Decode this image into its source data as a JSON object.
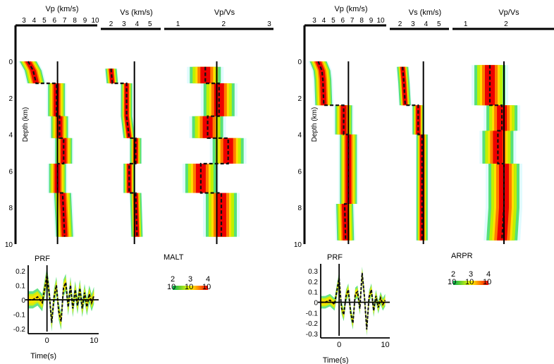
{
  "chart_data": [
    {
      "type": "area",
      "station": "MALT",
      "panels": {
        "vp": {
          "title": "Vp (km/s)",
          "ticks": [
            "3",
            "4",
            "5",
            "6",
            "7",
            "8",
            "9",
            "10"
          ],
          "xlim": [
            3,
            10
          ]
        },
        "vs": {
          "title": "Vs (km/s)",
          "ticks": [
            "2",
            "3",
            "4",
            "5"
          ],
          "xlim": [
            1.7,
            5.5
          ]
        },
        "vpvs": {
          "title": "Vp/Vs",
          "ticks": [
            "1",
            "2",
            "3"
          ],
          "xlim": [
            0.9,
            3
          ]
        }
      },
      "depth_axis": {
        "label": "Depth (km)",
        "ticks": [
          "0",
          "2",
          "4",
          "6",
          "8",
          "10"
        ],
        "ylim": [
          0,
          10
        ]
      },
      "best_fit": {
        "vp": [
          [
            0,
            3.4
          ],
          [
            0.5,
            3.9
          ],
          [
            1.2,
            4.2
          ],
          [
            1.2,
            6.2
          ],
          [
            3.0,
            6.2
          ],
          [
            3.0,
            6.5
          ],
          [
            4.2,
            6.5
          ],
          [
            4.2,
            6.9
          ],
          [
            5.6,
            6.9
          ],
          [
            5.6,
            6.3
          ],
          [
            7.2,
            6.3
          ],
          [
            7.2,
            6.8
          ],
          [
            9.6,
            7.0
          ]
        ],
        "vs": [
          [
            0.4,
            2.0
          ],
          [
            1.2,
            2.1
          ],
          [
            1.2,
            3.2
          ],
          [
            3.0,
            3.2
          ],
          [
            4.2,
            3.4
          ],
          [
            4.2,
            3.9
          ],
          [
            5.6,
            3.9
          ],
          [
            5.6,
            3.4
          ],
          [
            7.2,
            3.4
          ],
          [
            7.2,
            3.9
          ],
          [
            9.6,
            4.0
          ]
        ],
        "vpvs": [
          [
            0.3,
            1.6
          ],
          [
            1.2,
            1.6
          ],
          [
            1.2,
            1.9
          ],
          [
            3.0,
            1.9
          ],
          [
            3.0,
            1.65
          ],
          [
            4.2,
            1.65
          ],
          [
            4.2,
            2.1
          ],
          [
            5.6,
            2.1
          ],
          [
            5.6,
            1.5
          ],
          [
            7.2,
            1.5
          ],
          [
            7.2,
            1.95
          ],
          [
            9.6,
            1.95
          ]
        ]
      },
      "reference": {
        "vp": 6.3,
        "vs": 3.8,
        "vpvs": 1.85
      },
      "prf": {
        "title": "PRF",
        "xlabel": "Time(s)",
        "xticks": [
          "0",
          "10"
        ],
        "yticks": [
          "0.2",
          "0.1",
          "0",
          "-0.1",
          "-0.2"
        ],
        "xlim": [
          -4,
          11
        ],
        "ylim": [
          -0.22,
          0.22
        ],
        "x": [
          -4,
          -3,
          -2,
          -1,
          0,
          0.5,
          1,
          1.5,
          2,
          2.5,
          3,
          3.5,
          4,
          4.5,
          5,
          5.5,
          6,
          6.5,
          7,
          7.5,
          8,
          8.5,
          9,
          9.5,
          10
        ],
        "y": [
          0.0,
          0.0,
          0.02,
          -0.02,
          0.17,
          0.04,
          -0.16,
          0.02,
          0.1,
          -0.08,
          -0.15,
          0.08,
          0.12,
          -0.05,
          0.1,
          -0.06,
          0.07,
          -0.04,
          0.08,
          -0.06,
          0.05,
          -0.05,
          0.04,
          -0.02,
          0.03
        ]
      },
      "colorbar": {
        "labels": [
          "2",
          "3",
          "4"
        ],
        "base": [
          "10",
          "10",
          "10"
        ],
        "colors": [
          "#00b050",
          "#ffff00",
          "#ff0000"
        ]
      }
    },
    {
      "type": "area",
      "station": "ARPR",
      "panels": {
        "vp": {
          "title": "Vp (km/s)",
          "ticks": [
            "3",
            "4",
            "5",
            "6",
            "7",
            "8",
            "9",
            "10"
          ],
          "xlim": [
            3,
            10
          ]
        },
        "vs": {
          "title": "Vs (km/s)",
          "ticks": [
            "2",
            "3",
            "4",
            "5"
          ],
          "xlim": [
            1.7,
            5.5
          ]
        },
        "vpvs": {
          "title": "Vp/Vs",
          "ticks": [
            "1",
            "2"
          ],
          "xlim": [
            0.9,
            3
          ]
        }
      },
      "depth_axis": {
        "label": "Depth (km)",
        "ticks": [
          "0",
          "2",
          "4",
          "6",
          "8",
          "10"
        ],
        "ylim": [
          0,
          10
        ]
      },
      "best_fit": {
        "vp": [
          [
            0,
            3.4
          ],
          [
            0.5,
            3.8
          ],
          [
            1.0,
            3.9
          ],
          [
            2.4,
            4.0
          ],
          [
            2.4,
            6.1
          ],
          [
            4.0,
            6.1
          ],
          [
            4.0,
            6.6
          ],
          [
            7.8,
            6.6
          ],
          [
            7.8,
            6.2
          ],
          [
            9.8,
            6.3
          ]
        ],
        "vs": [
          [
            0.3,
            2.2
          ],
          [
            1.2,
            2.3
          ],
          [
            2.4,
            2.4
          ],
          [
            2.4,
            3.4
          ],
          [
            4.0,
            3.4
          ],
          [
            4.0,
            3.7
          ],
          [
            9.8,
            3.7
          ]
        ],
        "vpvs": [
          [
            0.2,
            1.6
          ],
          [
            2.4,
            1.6
          ],
          [
            2.4,
            1.9
          ],
          [
            3.8,
            1.9
          ],
          [
            3.8,
            1.8
          ],
          [
            5.6,
            1.8
          ],
          [
            5.6,
            1.95
          ],
          [
            8.0,
            1.95
          ],
          [
            9.8,
            1.9
          ]
        ]
      },
      "reference": {
        "vp": 6.6,
        "vs": 3.8,
        "vpvs": 1.95
      },
      "prf": {
        "title": "PRF",
        "xlabel": "Time(s)",
        "xticks": [
          "0",
          "10"
        ],
        "yticks": [
          "0.3",
          "0.2",
          "0.1",
          "0",
          "-0.1",
          "-0.2",
          "-0.3"
        ],
        "xlim": [
          -4,
          11
        ],
        "ylim": [
          -0.32,
          0.34
        ],
        "x": [
          -4,
          -3,
          -2,
          -1,
          0,
          0.5,
          1,
          1.5,
          2,
          2.5,
          3,
          3.5,
          4,
          4.5,
          5,
          5.5,
          6,
          6.5,
          7,
          7.5,
          8,
          8.5,
          9,
          9.5,
          10
        ],
        "y": [
          0.0,
          0.0,
          0.02,
          -0.02,
          0.23,
          -0.05,
          -0.12,
          0.06,
          0.12,
          -0.1,
          -0.2,
          0.08,
          0.1,
          -0.06,
          0.28,
          0.05,
          -0.26,
          0.05,
          0.12,
          -0.08,
          0.06,
          -0.05,
          0.04,
          -0.02,
          0.02
        ]
      },
      "colorbar": {
        "labels": [
          "2",
          "3",
          "4"
        ],
        "base": [
          "10",
          "10",
          "10"
        ],
        "colors": [
          "#00b050",
          "#ffff00",
          "#ff0000"
        ]
      }
    }
  ]
}
